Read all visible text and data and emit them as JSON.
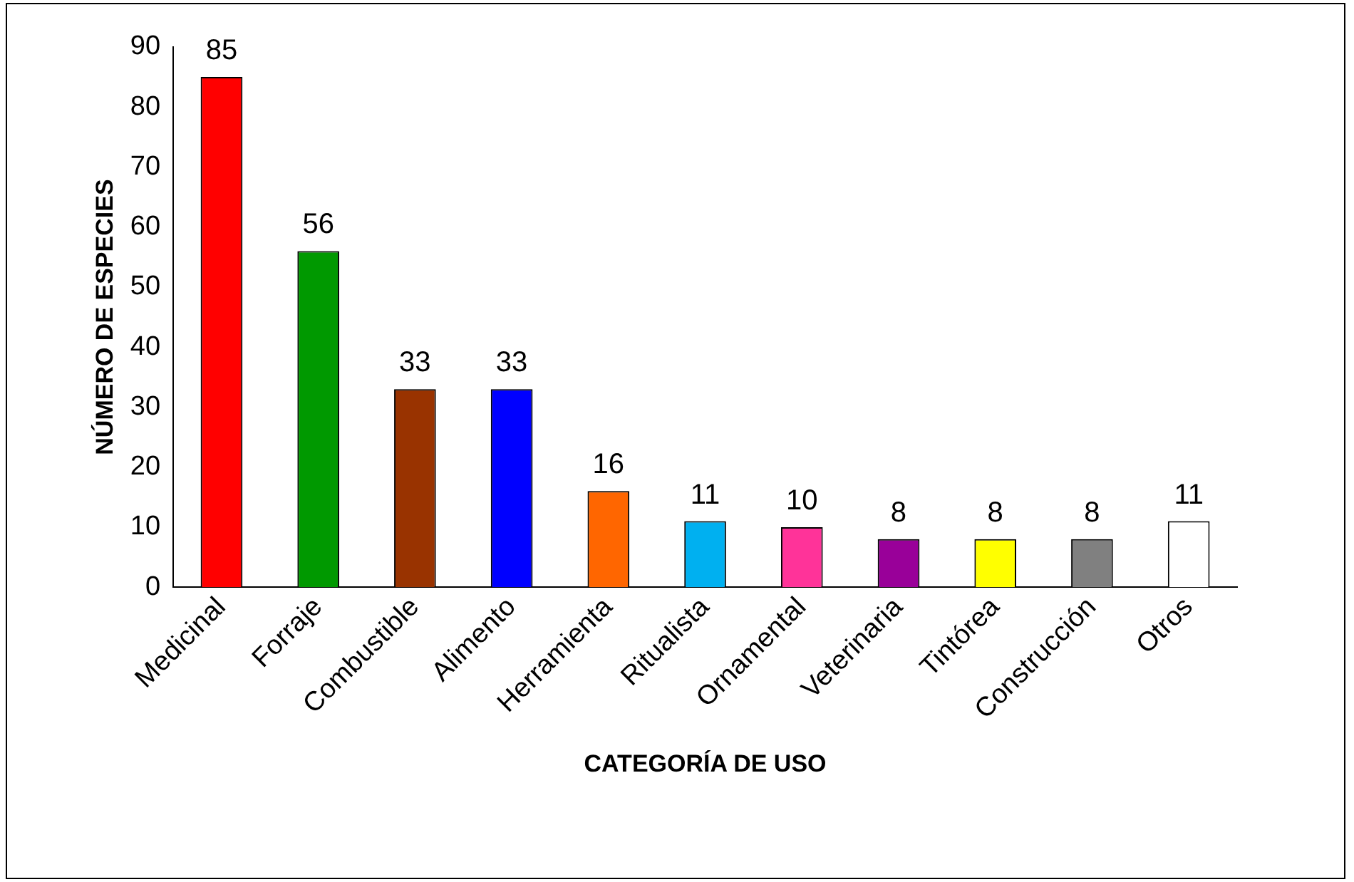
{
  "chart_data": {
    "type": "bar",
    "xlabel": "CATEGORÍA DE USO",
    "ylabel": "NÚMERO DE ESPECIES",
    "categories": [
      "Medicinal",
      "Forraje",
      "Combustible",
      "Alimento",
      "Herramienta",
      "Ritualista",
      "Ornamental",
      "Veterinaria",
      "Tintórea",
      "Construcción",
      "Otros"
    ],
    "values": [
      85,
      56,
      33,
      33,
      16,
      11,
      10,
      8,
      8,
      8,
      11
    ],
    "colors": [
      "#ff0000",
      "#009900",
      "#993300",
      "#0000ff",
      "#ff6600",
      "#00b0f0",
      "#ff3399",
      "#990099",
      "#ffff00",
      "#808080",
      "#ffffff"
    ],
    "ylim": [
      0,
      90
    ],
    "yticks": [
      0,
      10,
      20,
      30,
      40,
      50,
      60,
      70,
      80,
      90
    ],
    "grid": false,
    "legend": false,
    "data_labels": true
  }
}
